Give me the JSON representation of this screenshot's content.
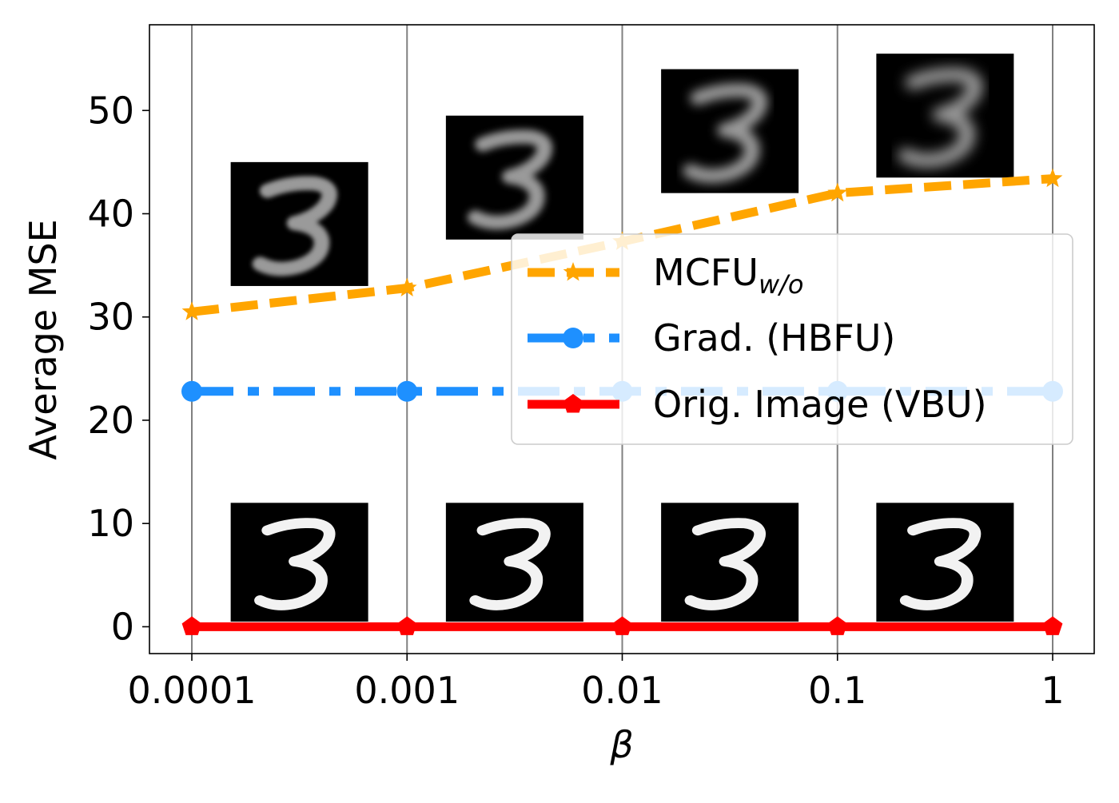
{
  "chart_data": {
    "type": "line",
    "xlabel": "β",
    "ylabel": "Average MSE",
    "x": [
      0.0001,
      0.001,
      0.01,
      0.1,
      1
    ],
    "x_tick_labels": [
      "0.0001",
      "0.001",
      "0.01",
      "0.1",
      "1"
    ],
    "x_scale": "log",
    "y_ticks": [
      0,
      10,
      20,
      30,
      40,
      50
    ],
    "ylim": [
      -2.6,
      58.3
    ],
    "grid": "vertical lines at each x tick",
    "legend_placement": "center-right",
    "series": [
      {
        "name": "MCFU",
        "name_subscript": "w/o",
        "values": [
          30.5,
          32.8,
          37.3,
          42.0,
          43.4
        ],
        "color": "#ffa500",
        "line_style": "dashed",
        "marker": "star"
      },
      {
        "name": "Grad. (HBFU)",
        "values": [
          22.8,
          22.8,
          22.8,
          22.8,
          22.8
        ],
        "color": "#1e90ff",
        "line_style": "dash-dot",
        "marker": "circle"
      },
      {
        "name": "Orig. Image (VBU)",
        "values": [
          0,
          0,
          0,
          0,
          0
        ],
        "color": "#ff0000",
        "line_style": "solid",
        "marker": "pentagon"
      }
    ],
    "annotations": {
      "blurry_digit_thumbnails": [
        {
          "x_between": [
            0.0001,
            0.001
          ],
          "y_range": [
            33,
            45
          ],
          "digit": "3",
          "blur": "low"
        },
        {
          "x_between": [
            0.001,
            0.01
          ],
          "y_range": [
            37.5,
            49.5
          ],
          "digit": "3",
          "blur": "medium"
        },
        {
          "x_between": [
            0.01,
            0.1
          ],
          "y_range": [
            42,
            54
          ],
          "digit": "3",
          "blur": "high"
        },
        {
          "x_between": [
            0.1,
            1
          ],
          "y_range": [
            43.5,
            55.5
          ],
          "digit": "3",
          "blur": "very-high"
        }
      ],
      "sharp_digit_thumbnails": [
        {
          "x_between": [
            0.0001,
            0.001
          ],
          "y_range": [
            0.5,
            12
          ],
          "digit": "3"
        },
        {
          "x_between": [
            0.001,
            0.01
          ],
          "y_range": [
            0.5,
            12
          ],
          "digit": "3"
        },
        {
          "x_between": [
            0.01,
            0.1
          ],
          "y_range": [
            0.5,
            12
          ],
          "digit": "3"
        },
        {
          "x_between": [
            0.1,
            1
          ],
          "y_range": [
            0.5,
            12
          ],
          "digit": "3"
        }
      ]
    }
  }
}
